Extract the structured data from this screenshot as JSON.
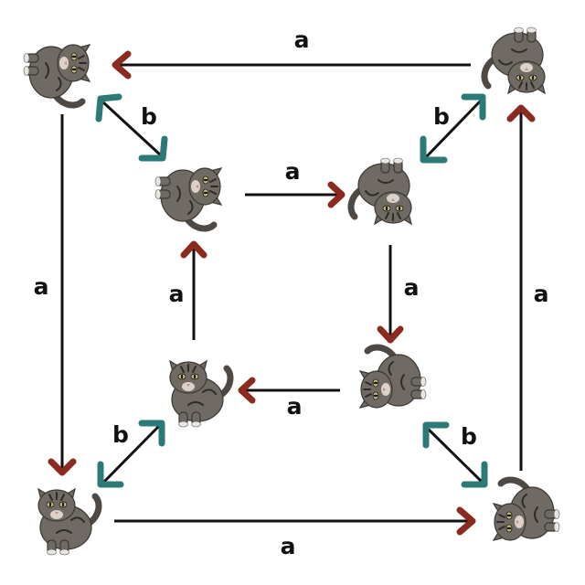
{
  "labels": {
    "top": "a",
    "left": "a",
    "right": "a",
    "bottom": "a",
    "inner_top": "a",
    "inner_right": "a",
    "inner_bottom": "a",
    "inner_left": "a",
    "b_top_left": "b",
    "b_top_right": "b",
    "b_bottom_left": "b",
    "b_bottom_right": "b"
  },
  "colors": {
    "arrow_line": "#111111",
    "a_arrowhead": "#8b2a1e",
    "b_arrowhead": "#2c7a78"
  }
}
